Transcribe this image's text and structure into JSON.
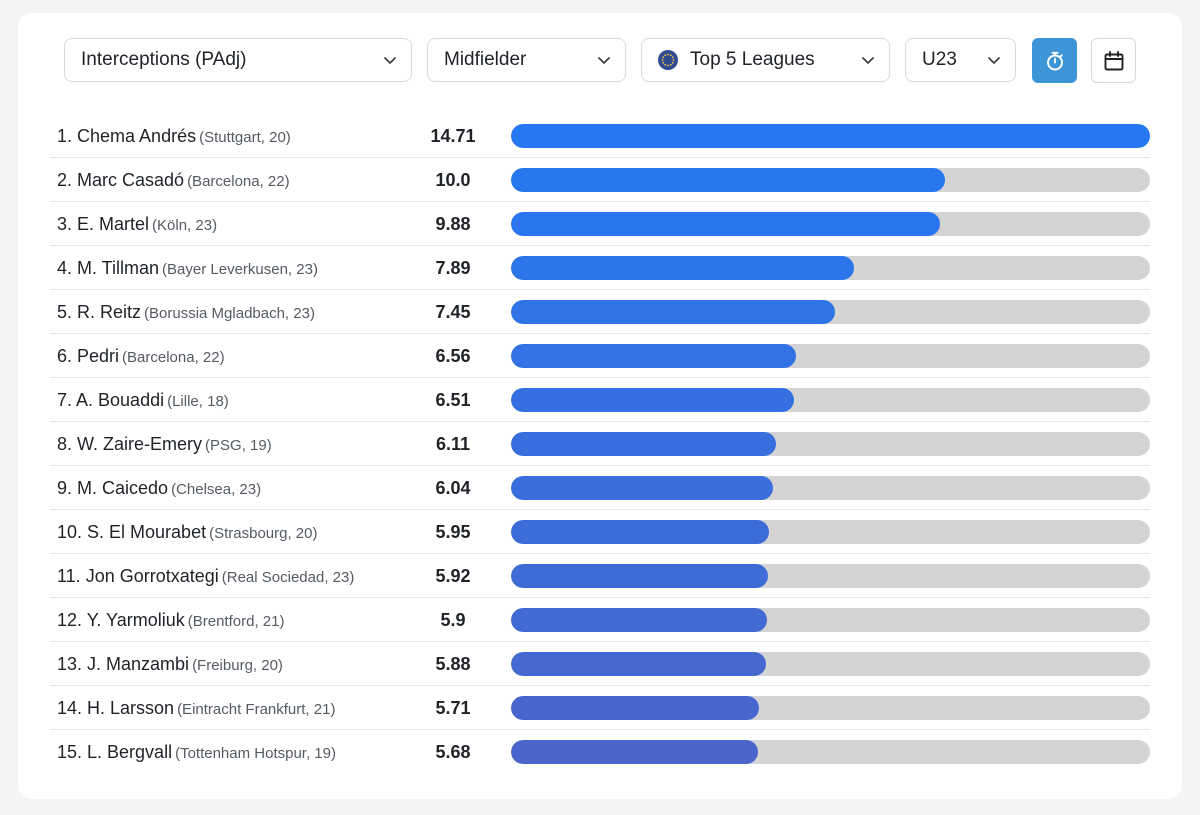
{
  "filters": {
    "metric": "Interceptions (PAdj)",
    "position": "Midfielder",
    "league": "Top 5 Leagues",
    "age": "U23"
  },
  "icons": {
    "metric_chevron": "chevron-down-icon",
    "position_chevron": "chevron-down-icon",
    "league_flag": "eu-flag-icon",
    "league_chevron": "chevron-down-icon",
    "age_chevron": "chevron-down-icon",
    "timer": "stopwatch-icon",
    "calendar": "calendar-icon"
  },
  "colors": {
    "active_button": "#3d95d8",
    "bar_track": "#d4d4d4",
    "bar_start": "#2478f2",
    "bar_end": "#4a66cc"
  },
  "chart_data": {
    "type": "bar",
    "xlim": [
      0,
      14.71
    ],
    "categories": [
      "1. Chema Andrés",
      "2. Marc Casadó",
      "3. E. Martel",
      "4. M. Tillman",
      "5. R. Reitz",
      "6. Pedri",
      "7. A. Bouaddi",
      "8. W. Zaire-Emery",
      "9. M. Caicedo",
      "10. S. El Mourabet",
      "11. Jon Gorrotxategi",
      "12. Y. Yarmoliuk",
      "13. J. Manzambi",
      "14. H. Larsson",
      "15. L. Bergvall"
    ],
    "values": [
      14.71,
      10.0,
      9.88,
      7.89,
      7.45,
      6.56,
      6.51,
      6.11,
      6.04,
      5.95,
      5.92,
      5.9,
      5.88,
      5.71,
      5.68
    ],
    "rows": [
      {
        "name": "1. Chema Andrés",
        "meta": "(Stuttgart, 20)",
        "value_label": "14.71"
      },
      {
        "name": "2. Marc Casadó",
        "meta": "(Barcelona, 22)",
        "value_label": "10.0"
      },
      {
        "name": "3. E. Martel",
        "meta": "(Köln, 23)",
        "value_label": "9.88"
      },
      {
        "name": "4. M. Tillman",
        "meta": "(Bayer Leverkusen, 23)",
        "value_label": "7.89"
      },
      {
        "name": "5. R. Reitz",
        "meta": "(Borussia Mgladbach, 23)",
        "value_label": "7.45"
      },
      {
        "name": "6. Pedri",
        "meta": "(Barcelona, 22)",
        "value_label": "6.56"
      },
      {
        "name": "7. A. Bouaddi",
        "meta": "(Lille, 18)",
        "value_label": "6.51"
      },
      {
        "name": "8. W. Zaire-Emery",
        "meta": "(PSG, 19)",
        "value_label": "6.11"
      },
      {
        "name": "9. M. Caicedo",
        "meta": "(Chelsea, 23)",
        "value_label": "6.04"
      },
      {
        "name": "10. S. El Mourabet",
        "meta": "(Strasbourg, 20)",
        "value_label": "5.95"
      },
      {
        "name": "11. Jon Gorrotxategi",
        "meta": "(Real Sociedad, 23)",
        "value_label": "5.92"
      },
      {
        "name": "12. Y. Yarmoliuk",
        "meta": "(Brentford, 21)",
        "value_label": "5.9"
      },
      {
        "name": "13. J. Manzambi",
        "meta": "(Freiburg, 20)",
        "value_label": "5.88"
      },
      {
        "name": "14. H. Larsson",
        "meta": "(Eintracht Frankfurt, 21)",
        "value_label": "5.71"
      },
      {
        "name": "15. L. Bergvall",
        "meta": "(Tottenham Hotspur, 19)",
        "value_label": "5.68"
      }
    ]
  }
}
